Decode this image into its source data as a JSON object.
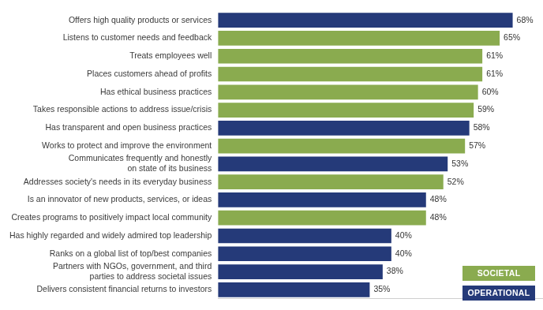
{
  "chart_data": {
    "type": "bar",
    "orientation": "horizontal",
    "stacked": true,
    "grid": false,
    "data_labels": true,
    "tick_labels": "y",
    "legend": "lower right",
    "xlim": [
      0,
      75
    ],
    "categories": [
      "Offers high quality products or services",
      "Listens to customer needs and feedback",
      "Treats employees well",
      "Places customers ahead of profits",
      "Has ethical business practices",
      "Takes responsible actions to address issue/crisis",
      "Has transparent and open business practices",
      "Works to protect and improve the environment",
      [
        "Communicates frequently and honestly",
        "on state of its business"
      ],
      "Addresses society's needs in its everyday business",
      "Is an innovator of new products, services, or ideas",
      "Creates programs to positively impact local community",
      "Has highly regarded and widely admired top leadership",
      "Ranks on a global list of top/best companies",
      [
        "Partners with NGOs, government, and third",
        "parties to address societal issues"
      ],
      "Delivers consistent financial returns to investors"
    ],
    "series": [
      {
        "name": "SOCIETAL",
        "color": "#8aab4f",
        "values": [
          null,
          65,
          61,
          61,
          60,
          59,
          null,
          57,
          null,
          52,
          null,
          48,
          null,
          null,
          null,
          null
        ],
        "value_labels": [
          null,
          "65%",
          "61%",
          "61%",
          "60%",
          "59%",
          null,
          "57%",
          null,
          "52%",
          null,
          "48%",
          null,
          null,
          null,
          null
        ]
      },
      {
        "name": "OPERATIONAL",
        "color": "#253a79",
        "values": [
          68,
          null,
          null,
          null,
          null,
          null,
          58,
          null,
          53,
          null,
          48,
          null,
          40,
          40,
          38,
          35
        ],
        "value_labels": [
          "68%",
          null,
          null,
          null,
          null,
          null,
          "58%",
          null,
          "53%",
          null,
          "48%",
          null,
          "40%",
          "40%",
          "38%",
          "35%"
        ]
      }
    ]
  }
}
